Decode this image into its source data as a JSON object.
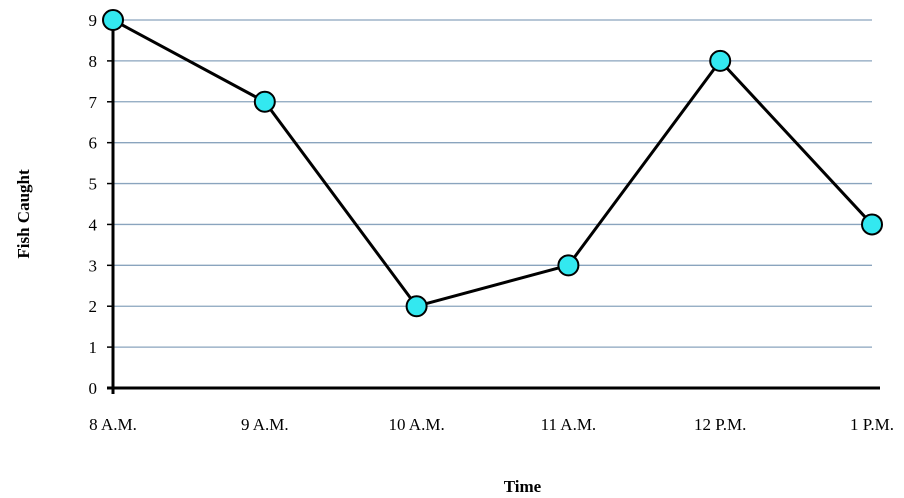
{
  "chart_data": {
    "type": "line",
    "title": "",
    "xlabel": "Time",
    "ylabel": "Fish Caught",
    "categories": [
      "8 A.M.",
      "9 A.M.",
      "10 A.M.",
      "11 A.M.",
      "12 P.M.",
      "1 P.M."
    ],
    "series": [
      {
        "values": [
          9,
          7,
          2,
          3,
          8,
          4
        ]
      }
    ],
    "ylim": [
      0,
      9
    ],
    "yticks": [
      "0",
      "1",
      "2",
      "3",
      "4",
      "5",
      "6",
      "7",
      "8",
      "9"
    ],
    "grid": true,
    "legend": "none",
    "colors": {
      "marker_fill": "#33e8f0",
      "line": "#000000",
      "grid": "#8aa4be"
    }
  }
}
